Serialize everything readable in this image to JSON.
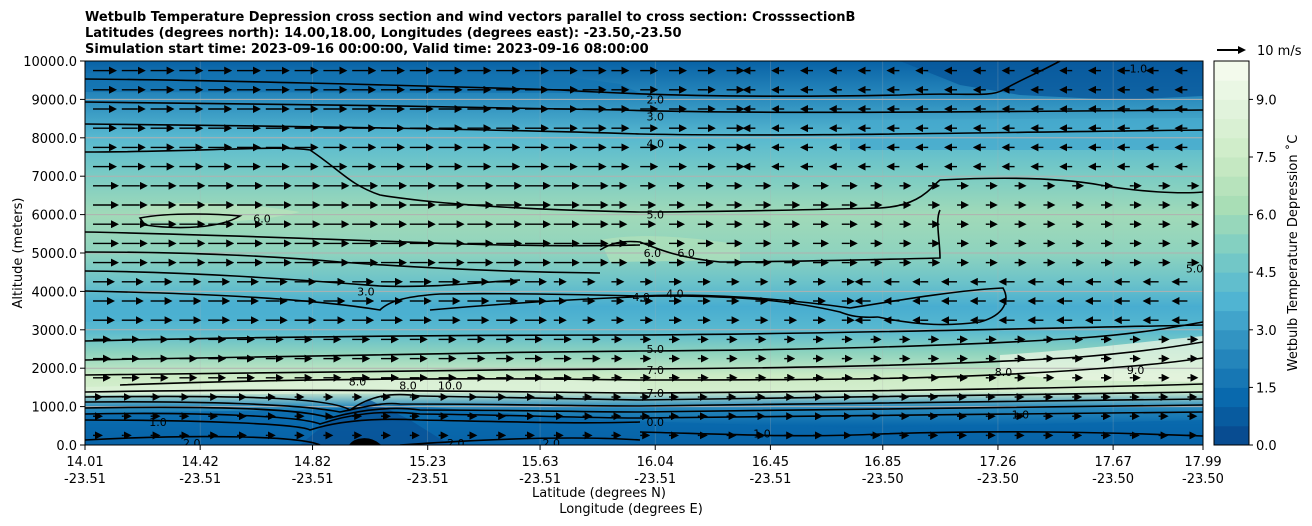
{
  "chart_data": {
    "type": "heatmap",
    "title": [
      "Wetbulb Temperature Depression cross section and wind vectors parallel to cross section: CrosssectionB",
      "Latitudes (degrees north): 14.00,18.00, Longitudes (degrees east): -23.50,-23.50",
      "Simulation start time: 2023-09-16 00:00:00, Valid time: 2023-09-16 08:00:00"
    ],
    "xlabel": "Latitude (degrees N)",
    "xlabel2": "Longitude (degrees E)",
    "ylabel": "Altitude (meters)",
    "ylim": [
      0,
      10000
    ],
    "y_ticks": [
      "0.0",
      "1000.0",
      "2000.0",
      "3000.0",
      "4000.0",
      "5000.0",
      "6000.0",
      "7000.0",
      "8000.0",
      "9000.0",
      "10000.0"
    ],
    "x_ticks": [
      {
        "lat": "14.01",
        "lon": "-23.51"
      },
      {
        "lat": "14.42",
        "lon": "-23.51"
      },
      {
        "lat": "14.82",
        "lon": "-23.51"
      },
      {
        "lat": "15.23",
        "lon": "-23.51"
      },
      {
        "lat": "15.63",
        "lon": "-23.51"
      },
      {
        "lat": "16.04",
        "lon": "-23.51"
      },
      {
        "lat": "16.45",
        "lon": "-23.51"
      },
      {
        "lat": "16.85",
        "lon": "-23.50"
      },
      {
        "lat": "17.26",
        "lon": "-23.50"
      },
      {
        "lat": "17.67",
        "lon": "-23.50"
      },
      {
        "lat": "17.99",
        "lon": "-23.50"
      }
    ],
    "grid": true,
    "colorbar": {
      "label": "Wetbulb Temperature Depression ˚C",
      "range": [
        0,
        10
      ],
      "ticks": [
        "0.0",
        "1.5",
        "3.0",
        "4.5",
        "6.0",
        "7.5",
        "9.0"
      ],
      "colormap": "GnBu_r",
      "levels": 20
    },
    "wind_key": {
      "label": "10 m/s",
      "speed_ms": 10
    },
    "depression_profile_by_altitude": [
      {
        "alt": 0,
        "value": 0.5
      },
      {
        "alt": 500,
        "value": 1.2
      },
      {
        "alt": 1000,
        "value": 2.5
      },
      {
        "alt": 1400,
        "value": 8.0
      },
      {
        "alt": 1800,
        "value": 7.5
      },
      {
        "alt": 2400,
        "value": 5.5
      },
      {
        "alt": 3000,
        "value": 4.0
      },
      {
        "alt": 3600,
        "value": 3.5
      },
      {
        "alt": 4200,
        "value": 4.5
      },
      {
        "alt": 5000,
        "value": 5.5
      },
      {
        "alt": 6000,
        "value": 6.0
      },
      {
        "alt": 7000,
        "value": 5.0
      },
      {
        "alt": 8000,
        "value": 4.0
      },
      {
        "alt": 9000,
        "value": 2.5
      },
      {
        "alt": 10000,
        "value": 1.0
      }
    ],
    "contour_labels": [
      {
        "text": "2.0",
        "lat": 16.04,
        "alt": 9000
      },
      {
        "text": "3.0",
        "lat": 16.04,
        "alt": 8550
      },
      {
        "text": "4.0",
        "lat": 16.04,
        "alt": 7850
      },
      {
        "text": "5.0",
        "lat": 16.04,
        "alt": 6000
      },
      {
        "text": "6.0",
        "lat": 16.03,
        "alt": 5000
      },
      {
        "text": "6.0",
        "lat": 16.15,
        "alt": 5000
      },
      {
        "text": "4.0",
        "lat": 15.99,
        "alt": 3850
      },
      {
        "text": "4.0",
        "lat": 16.11,
        "alt": 3950
      },
      {
        "text": "3.0",
        "lat": 15.01,
        "alt": 4000
      },
      {
        "text": "6.0",
        "lat": 14.64,
        "alt": 5900
      },
      {
        "text": "5.0",
        "lat": 16.04,
        "alt": 2500
      },
      {
        "text": "7.0",
        "lat": 16.04,
        "alt": 1950
      },
      {
        "text": "7.0",
        "lat": 16.04,
        "alt": 1350
      },
      {
        "text": "8.0",
        "lat": 14.98,
        "alt": 1650
      },
      {
        "text": "8.0",
        "lat": 15.16,
        "alt": 1550
      },
      {
        "text": "8.0",
        "lat": 17.28,
        "alt": 1900
      },
      {
        "text": "9.0",
        "lat": 17.75,
        "alt": 1950
      },
      {
        "text": "10.0",
        "lat": 15.31,
        "alt": 1550
      },
      {
        "text": "1.0",
        "lat": 16.42,
        "alt": 300
      },
      {
        "text": "2.0",
        "lat": 14.39,
        "alt": 50
      },
      {
        "text": "2.0",
        "lat": 15.33,
        "alt": 50
      },
      {
        "text": "2.0",
        "lat": 15.67,
        "alt": 50
      },
      {
        "text": "1.0",
        "lat": 17.76,
        "alt": 9800
      },
      {
        "text": "5.0",
        "lat": 17.96,
        "alt": 4600
      },
      {
        "text": "1.0",
        "lat": 17.34,
        "alt": 800
      },
      {
        "text": "1.0",
        "lat": 14.27,
        "alt": 600
      },
      {
        "text": "0.0",
        "lat": 16.04,
        "alt": 600
      }
    ]
  }
}
